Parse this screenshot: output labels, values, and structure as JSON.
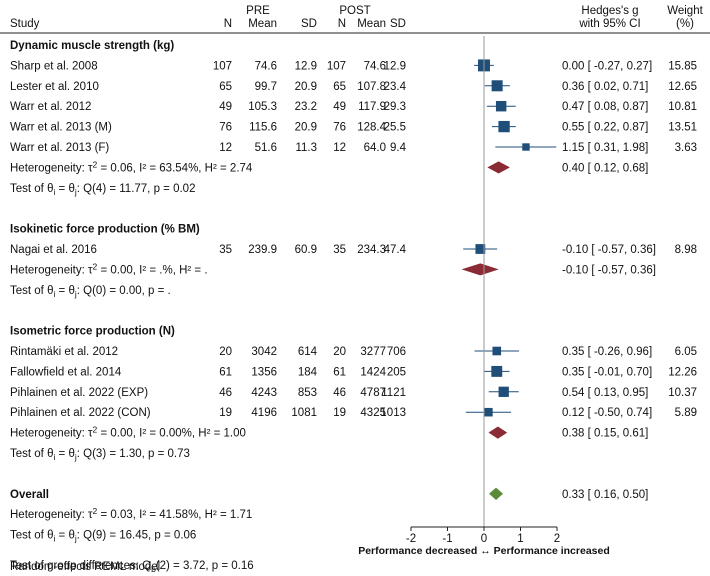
{
  "chart_data": {
    "type": "forest",
    "headers": {
      "study": "Study",
      "pre": "PRE",
      "post": "POST",
      "n": "N",
      "mean": "Mean",
      "sd": "SD",
      "effect_line1": "Hedges's g",
      "effect_line2": "with 95% CI",
      "weight_line1": "Weight",
      "weight_line2": "(%)"
    },
    "groups": [
      {
        "title": "Dynamic muscle strength (kg)",
        "studies": [
          {
            "study": "Sharp et al. 2008",
            "pre_n": "107",
            "pre_mean": "74.6",
            "pre_sd": "12.9",
            "post_n": "107",
            "post_mean": "74.6",
            "post_sd": "12.9",
            "g": 0.0,
            "lo": -0.27,
            "hi": 0.27,
            "ci_text": "0.00 [ -0.27,  0.27]",
            "weight": "15.85"
          },
          {
            "study": "Lester et al. 2010",
            "pre_n": "65",
            "pre_mean": "99.7",
            "pre_sd": "20.9",
            "post_n": "65",
            "post_mean": "107.8",
            "post_sd": "23.4",
            "g": 0.36,
            "lo": 0.02,
            "hi": 0.71,
            "ci_text": "0.36 [  0.02,  0.71]",
            "weight": "12.65"
          },
          {
            "study": "Warr et al. 2012",
            "pre_n": "49",
            "pre_mean": "105.3",
            "pre_sd": "23.2",
            "post_n": "49",
            "post_mean": "117.9",
            "post_sd": "29.3",
            "g": 0.47,
            "lo": 0.08,
            "hi": 0.87,
            "ci_text": "0.47 [  0.08,  0.87]",
            "weight": "10.81"
          },
          {
            "study": "Warr et al. 2013 (M)",
            "pre_n": "76",
            "pre_mean": "115.6",
            "pre_sd": "20.9",
            "post_n": "76",
            "post_mean": "128.4",
            "post_sd": "25.5",
            "g": 0.55,
            "lo": 0.22,
            "hi": 0.87,
            "ci_text": "0.55 [  0.22,  0.87]",
            "weight": "13.51"
          },
          {
            "study": "Warr et al. 2013 (F)",
            "pre_n": "12",
            "pre_mean": "51.6",
            "pre_sd": "11.3",
            "post_n": "12",
            "post_mean": "64.0",
            "post_sd": "9.4",
            "g": 1.15,
            "lo": 0.31,
            "hi": 1.98,
            "ci_text": "1.15 [  0.31,  1.98]",
            "weight": "3.63"
          }
        ],
        "summary": {
          "g": 0.4,
          "lo": 0.12,
          "hi": 0.68,
          "ci_text": "0.40 [  0.12,  0.68]"
        },
        "heterogeneity_prefix": "Heterogeneity: τ",
        "heterogeneity_rest": " = 0.06, I² = 63.54%, H² = 2.74",
        "test_prefix": "Test of θ",
        "test_mid": " = θ",
        "test_rest": ": Q(4) = 11.77, p = 0.02"
      },
      {
        "title": "Isokinetic force production (% BM)",
        "studies": [
          {
            "study": "Nagai et al. 2016",
            "pre_n": "35",
            "pre_mean": "239.9",
            "pre_sd": "60.9",
            "post_n": "35",
            "post_mean": "234.3",
            "post_sd": "47.4",
            "g": -0.1,
            "lo": -0.57,
            "hi": 0.36,
            "ci_text": "-0.10 [ -0.57,  0.36]",
            "weight": "8.98"
          }
        ],
        "summary": {
          "g": -0.1,
          "lo": -0.57,
          "hi": 0.36,
          "ci_text": "-0.10 [ -0.57,  0.36]"
        },
        "heterogeneity_prefix": "Heterogeneity: τ",
        "heterogeneity_rest": " = 0.00, I² = .%, H² = .",
        "test_prefix": "Test of θ",
        "test_mid": " = θ",
        "test_rest": ": Q(0) = 0.00, p = ."
      },
      {
        "title": "Isometric force production (N)",
        "studies": [
          {
            "study": "Rintamäki et al. 2012",
            "pre_n": "20",
            "pre_mean": "3042",
            "pre_sd": "614",
            "post_n": "20",
            "post_mean": "3277",
            "post_sd": "706",
            "g": 0.35,
            "lo": -0.26,
            "hi": 0.96,
            "ci_text": "0.35 [ -0.26,  0.96]",
            "weight": "6.05"
          },
          {
            "study": "Fallowfield et al. 2014",
            "pre_n": "61",
            "pre_mean": "1356",
            "pre_sd": "184",
            "post_n": "61",
            "post_mean": "1424",
            "post_sd": "205",
            "g": 0.35,
            "lo": -0.01,
            "hi": 0.7,
            "ci_text": "0.35 [ -0.01,  0.70]",
            "weight": "12.26"
          },
          {
            "study": "Pihlainen et al. 2022 (EXP)",
            "pre_n": "46",
            "pre_mean": "4243",
            "pre_sd": "853",
            "post_n": "46",
            "post_mean": "4787",
            "post_sd": "1121",
            "g": 0.54,
            "lo": 0.13,
            "hi": 0.95,
            "ci_text": "0.54 [  0.13,  0.95]",
            "weight": "10.37"
          },
          {
            "study": "Pihlainen et al. 2022 (CON)",
            "pre_n": "19",
            "pre_mean": "4196",
            "pre_sd": "1081",
            "post_n": "19",
            "post_mean": "4325",
            "post_sd": "1013",
            "g": 0.12,
            "lo": -0.5,
            "hi": 0.74,
            "ci_text": "0.12 [ -0.50,  0.74]",
            "weight": "5.89"
          }
        ],
        "summary": {
          "g": 0.38,
          "lo": 0.15,
          "hi": 0.61,
          "ci_text": "0.38 [  0.15,  0.61]"
        },
        "heterogeneity_prefix": "Heterogeneity: τ",
        "heterogeneity_rest": " = 0.00, I² = 0.00%, H² = 1.00",
        "test_prefix": "Test of θ",
        "test_mid": " = θ",
        "test_rest": ": Q(3) = 1.30, p = 0.73"
      }
    ],
    "overall": {
      "title": "Overall",
      "g": 0.33,
      "lo": 0.16,
      "hi": 0.5,
      "ci_text": "0.33 [  0.16,  0.50]",
      "heterogeneity_prefix": "Heterogeneity: τ",
      "heterogeneity_rest": " = 0.03, I² = 41.58%, H² = 1.71",
      "test_prefix": "Test of θ",
      "test_mid": " = θ",
      "test_rest": ": Q(9) = 16.45, p = 0.06"
    },
    "group_test": {
      "prefix": "Test of group differences: Q",
      "rest": "(2) = 3.72, p = 0.16"
    },
    "xaxis": {
      "range": [
        -2,
        2
      ],
      "ticks": [
        -2,
        -1,
        0,
        1,
        2
      ],
      "tick_labels": [
        "-2",
        "-1",
        "0",
        "1",
        "2"
      ]
    },
    "xlabel": "Performance decreased ↔ Performance increased",
    "footnote": "Random-effects REML model",
    "colors": {
      "study_marker": "#1f4e79",
      "ci_line": "#1f4e79",
      "group_diamond": "#8b2b35",
      "overall_diamond": "#5b8a3a",
      "zero_line": "#9a9a9a",
      "text": "#111111"
    }
  }
}
